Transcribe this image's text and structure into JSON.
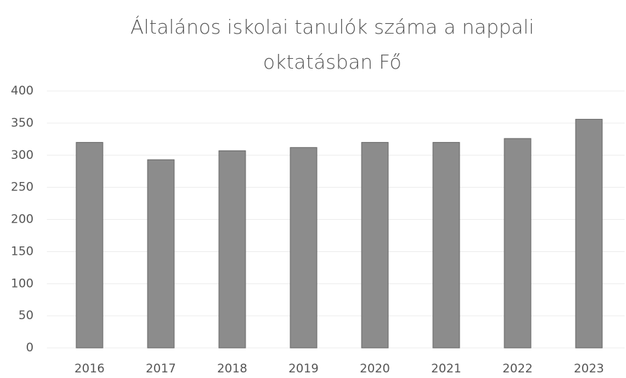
{
  "chart_data": {
    "type": "bar",
    "title": "Általános iskolai tanulók száma a nappali oktatásban Fő",
    "categories": [
      "2016",
      "2017",
      "2018",
      "2019",
      "2020",
      "2021",
      "2022",
      "2023"
    ],
    "values": [
      320,
      293,
      307,
      312,
      320,
      320,
      326,
      356
    ],
    "color": "#8c8c8c",
    "ylim": [
      0,
      400
    ],
    "yticks": [
      0,
      50,
      100,
      150,
      200,
      250,
      300,
      350,
      400
    ],
    "grid": true
  }
}
